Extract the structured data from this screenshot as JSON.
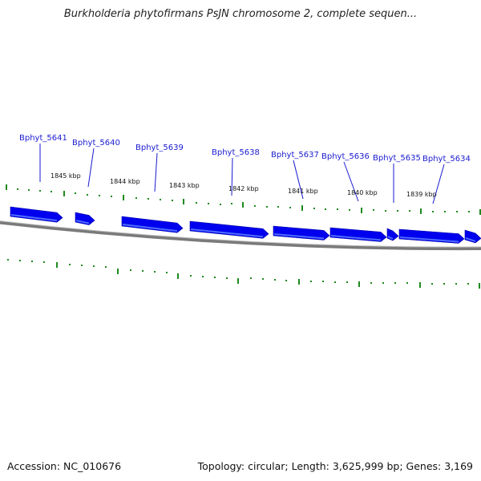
{
  "title": "Burkholderia phytofirmans PsJN chromosome 2, complete sequen...",
  "footer": {
    "accession": "Accession: NC_010676",
    "summary": "Topology: circular; Length: 3,625,999 bp; Genes: 3,169"
  },
  "colors": {
    "gene": "#0000ee",
    "gene_highlight": "#4d6bff",
    "tick": "#1f8a1f",
    "backbone": "#808080",
    "label": "#1a1ad0"
  },
  "ruler_labels": [
    "1845 kbp",
    "1844 kbp",
    "1843 kbp",
    "1842 kbp",
    "1841 kbp",
    "1840 kbp",
    "1839 kbp"
  ],
  "genes": [
    {
      "name": "Bphyt_5641",
      "strand": "+"
    },
    {
      "name": "Bphyt_5640",
      "strand": "+"
    },
    {
      "name": "Bphyt_5639",
      "strand": "+"
    },
    {
      "name": "Bphyt_5638",
      "strand": "+"
    },
    {
      "name": "Bphyt_5637",
      "strand": "+"
    },
    {
      "name": "Bphyt_5636",
      "strand": "+"
    },
    {
      "name": "Bphyt_5635",
      "strand": "+"
    },
    {
      "name": "Bphyt_5634",
      "strand": "+"
    }
  ]
}
